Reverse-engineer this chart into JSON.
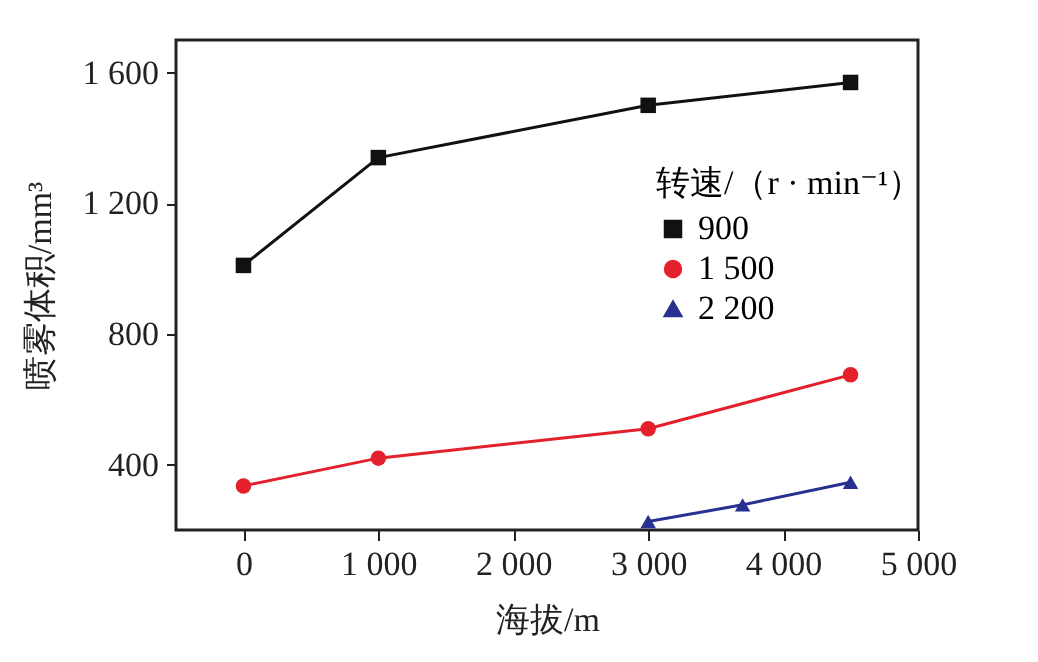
{
  "chart_data": {
    "type": "line",
    "xlabel": "海拔/m",
    "ylabel": "喷雾体积/mm³",
    "legend_title": "转速/（r · min⁻¹）",
    "x": [
      0,
      1000,
      3000,
      4500
    ],
    "series": [
      {
        "name": "900",
        "color": "#111111",
        "marker": "square",
        "values": [
          1010,
          1340,
          1500,
          1570
        ]
      },
      {
        "name": "1 500",
        "color": "#e3202b",
        "marker": "circle",
        "values": [
          335,
          420,
          510,
          675
        ]
      },
      {
        "name": "2 200",
        "color": "#28318f",
        "marker": "triangle",
        "x": [
          3000,
          3700,
          4500
        ],
        "values": [
          226,
          277,
          346
        ]
      }
    ],
    "xlim": [
      -500,
      5000
    ],
    "xticks": [
      0,
      {
        "value": 1000,
        "label": "1 000"
      },
      {
        "value": 2000,
        "label": "2 000"
      },
      {
        "value": 3000,
        "label": "3 000"
      },
      {
        "value": 4000,
        "label": "4 000"
      },
      {
        "value": 5000,
        "label": "5 000"
      }
    ],
    "ylim": [
      200,
      1700
    ],
    "yticks": [
      400,
      800,
      {
        "value": 1200,
        "label": "1 200"
      },
      {
        "value": 1600,
        "label": "1 600"
      }
    ],
    "grid": false,
    "legend": "top right",
    "line_style": "solid"
  }
}
